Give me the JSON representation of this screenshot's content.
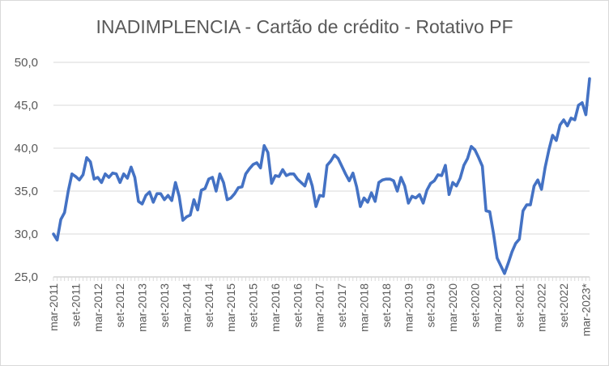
{
  "chart_data": {
    "type": "line",
    "title": "INADIMPLENCIA - Cartão de crédito - Rotativo PF",
    "xlabel": "",
    "ylabel": "",
    "ylim": [
      25,
      50
    ],
    "yticks": [
      25,
      30,
      35,
      40,
      45,
      50
    ],
    "yticklabels": [
      "25,0",
      "30,0",
      "35,0",
      "40,0",
      "45,0",
      "50,0"
    ],
    "grid": true,
    "legend": "none",
    "series_color": "#4472c4",
    "xticklabels": [
      "mar-2011",
      "set-2011",
      "mar-2012",
      "set-2012",
      "mar-2013",
      "set-2013",
      "mar-2014",
      "set-2014",
      "mar-2015",
      "set-2015",
      "mar-2016",
      "set-2016",
      "mar-2017",
      "set-2017",
      "mar-2018",
      "set-2018",
      "mar-2019",
      "set-2019",
      "mar-2020",
      "set-2020",
      "mar-2021",
      "set-2021",
      "mar-2022",
      "set-2022",
      "mar-2023*"
    ],
    "start": "mar-2011",
    "end": "mar-2023*",
    "series": [
      {
        "name": "Rotativo PF",
        "values": [
          30.0,
          29.3,
          31.7,
          32.5,
          35.0,
          37.0,
          36.7,
          36.3,
          36.9,
          38.9,
          38.4,
          36.4,
          36.6,
          36.0,
          37.0,
          36.6,
          37.1,
          37.0,
          36.0,
          37.0,
          36.5,
          37.8,
          36.6,
          33.8,
          33.5,
          34.5,
          34.9,
          33.7,
          34.7,
          34.7,
          34.0,
          34.5,
          33.9,
          36.0,
          34.4,
          31.6,
          32.0,
          32.2,
          34.0,
          32.8,
          35.1,
          35.3,
          36.4,
          36.6,
          35.0,
          37.0,
          36.0,
          34.0,
          34.2,
          34.7,
          35.4,
          35.5,
          37.0,
          37.6,
          38.1,
          38.3,
          37.7,
          40.3,
          39.5,
          35.9,
          36.8,
          36.7,
          37.5,
          36.8,
          37.0,
          37.0,
          36.4,
          36.0,
          35.6,
          37.0,
          35.6,
          33.2,
          34.5,
          34.4,
          38.0,
          38.5,
          39.2,
          38.8,
          37.9,
          37.0,
          36.2,
          37.1,
          35.5,
          33.2,
          34.2,
          33.7,
          34.8,
          33.8,
          36.0,
          36.3,
          36.4,
          36.4,
          36.2,
          35.0,
          36.6,
          35.6,
          33.6,
          34.4,
          34.2,
          34.6,
          33.6,
          35.1,
          35.9,
          36.2,
          36.9,
          36.8,
          38.0,
          34.6,
          36.0,
          35.6,
          36.5,
          38.0,
          38.8,
          40.2,
          39.8,
          38.9,
          37.9,
          32.7,
          32.6,
          30.1,
          27.2,
          26.3,
          25.4,
          26.6,
          27.9,
          28.9,
          29.4,
          32.7,
          33.4,
          33.4,
          35.6,
          36.3,
          35.2,
          37.8,
          39.8,
          41.5,
          40.9,
          42.7,
          43.3,
          42.6,
          43.5,
          43.3,
          45.0,
          45.3,
          43.9,
          48.1
        ]
      }
    ]
  }
}
